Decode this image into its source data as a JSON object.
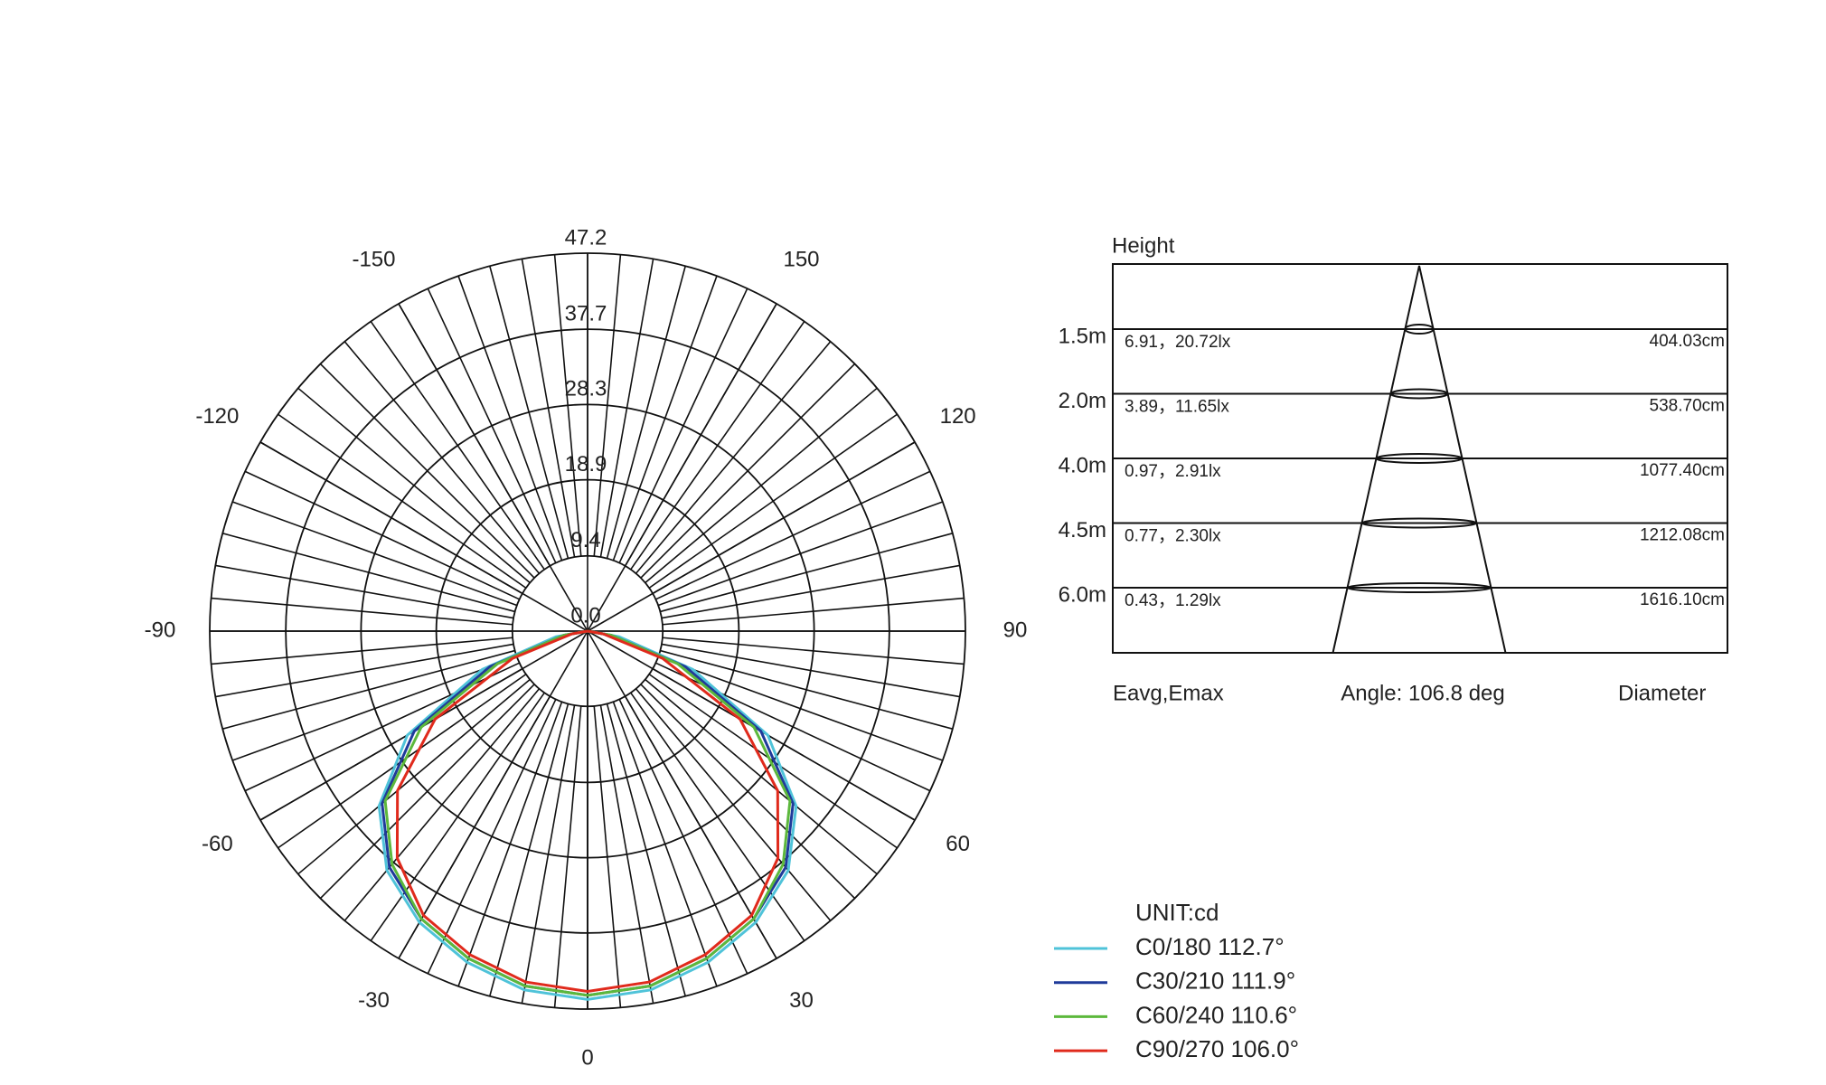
{
  "chart_data": {
    "type": "polar",
    "x": [
      -90,
      -80,
      -70,
      -60,
      -50,
      -40,
      -30,
      -20,
      -10,
      0,
      10,
      20,
      30,
      40,
      50,
      60,
      70,
      80,
      90
    ],
    "series": [
      {
        "name": "C0/180 112.7°",
        "color": "#4fc3d9",
        "values": [
          0,
          4,
          14,
          26,
          34,
          39,
          42,
          44,
          45.5,
          46,
          45.5,
          44,
          42,
          39,
          34,
          26,
          14,
          4,
          0
        ]
      },
      {
        "name": "C30/210 111.9°",
        "color": "#1f3a9a",
        "values": [
          0,
          3,
          13,
          25,
          33.5,
          38.5,
          41.5,
          43.5,
          45,
          45.5,
          45,
          43.5,
          41.5,
          38.5,
          33.5,
          25,
          13,
          3,
          0
        ]
      },
      {
        "name": "C60/240 110.6°",
        "color": "#5cb83c",
        "values": [
          0,
          3,
          12,
          24,
          33,
          38,
          41.5,
          43.5,
          45,
          45.5,
          45,
          43.5,
          41.5,
          38,
          33,
          24,
          12,
          3,
          0
        ]
      },
      {
        "name": "C90/270 106.0°",
        "color": "#e02a1c",
        "values": [
          0,
          2,
          10,
          22,
          31,
          37,
          41,
          43,
          44.5,
          45,
          44.5,
          43,
          41,
          37,
          31,
          22,
          10,
          2,
          0
        ]
      }
    ],
    "rlim": [
      0,
      47.2
    ],
    "rticks": [
      {
        "value": 0,
        "label": "0.0"
      },
      9.4,
      18.9,
      28.3,
      37.7,
      47.2
    ],
    "angle_ticks": [
      -150,
      -120,
      -90,
      -60,
      -30,
      0,
      30,
      60,
      90,
      120,
      150
    ],
    "legend_title": "UNIT:cd",
    "grid": true
  },
  "cone_diagram": {
    "title": "Height",
    "rows": [
      {
        "height": "1.5m",
        "illuminance": "6.91，20.72lx",
        "diameter": "404.03cm"
      },
      {
        "height": "2.0m",
        "illuminance": "3.89，11.65lx",
        "diameter": "538.70cm"
      },
      {
        "height": "4.0m",
        "illuminance": "0.97，2.91lx",
        "diameter": "1077.40cm"
      },
      {
        "height": "4.5m",
        "illuminance": "0.77，2.30lx",
        "diameter": "1212.08cm"
      },
      {
        "height": "6.0m",
        "illuminance": "0.43，1.29lx",
        "diameter": "1616.10cm"
      }
    ],
    "footer": [
      "Eavg,Emax",
      "Angle: 106.8 deg",
      "Diameter"
    ]
  }
}
